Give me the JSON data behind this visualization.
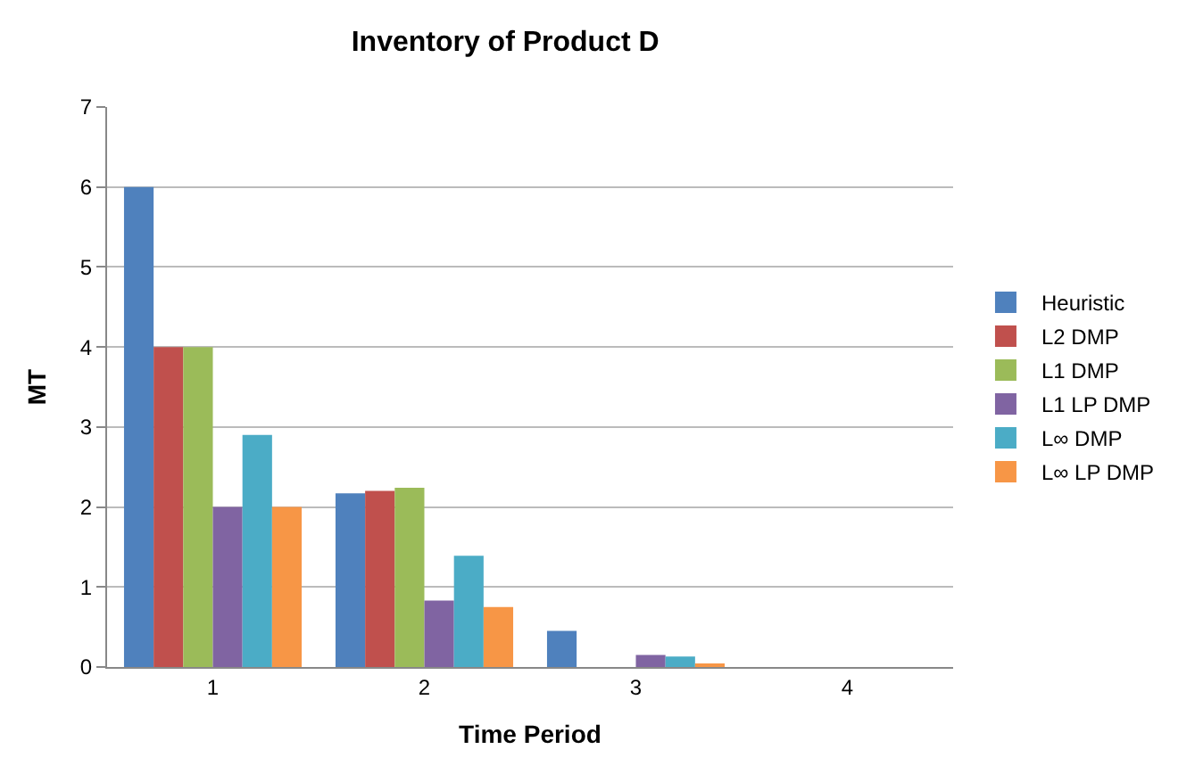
{
  "chart_data": {
    "type": "bar",
    "title": "Inventory of Product D",
    "xlabel": "Time Period",
    "ylabel": "MT",
    "categories": [
      "1",
      "2",
      "3",
      "4"
    ],
    "series": [
      {
        "name": "Heuristic",
        "color": "#4f81bd",
        "values": [
          6,
          2.17,
          0.45,
          0
        ]
      },
      {
        "name": "L2 DMP",
        "color": "#c0504d",
        "values": [
          4,
          2.2,
          0,
          0
        ]
      },
      {
        "name": "L1 DMP",
        "color": "#9bbb59",
        "values": [
          4,
          2.24,
          0,
          0
        ]
      },
      {
        "name": "L1 LP DMP",
        "color": "#8064a2",
        "values": [
          2,
          0.83,
          0.15,
          0
        ]
      },
      {
        "name": "L∞ DMP",
        "color": "#4bacc6",
        "values": [
          2.9,
          1.39,
          0.13,
          0
        ]
      },
      {
        "name": "L∞ LP DMP",
        "color": "#f79646",
        "values": [
          2,
          0.75,
          0.03,
          0
        ]
      }
    ],
    "ylim": [
      0,
      7
    ],
    "yticks": [
      0,
      1,
      2,
      3,
      4,
      5,
      6,
      7
    ],
    "grid": "y",
    "legend": "right"
  }
}
